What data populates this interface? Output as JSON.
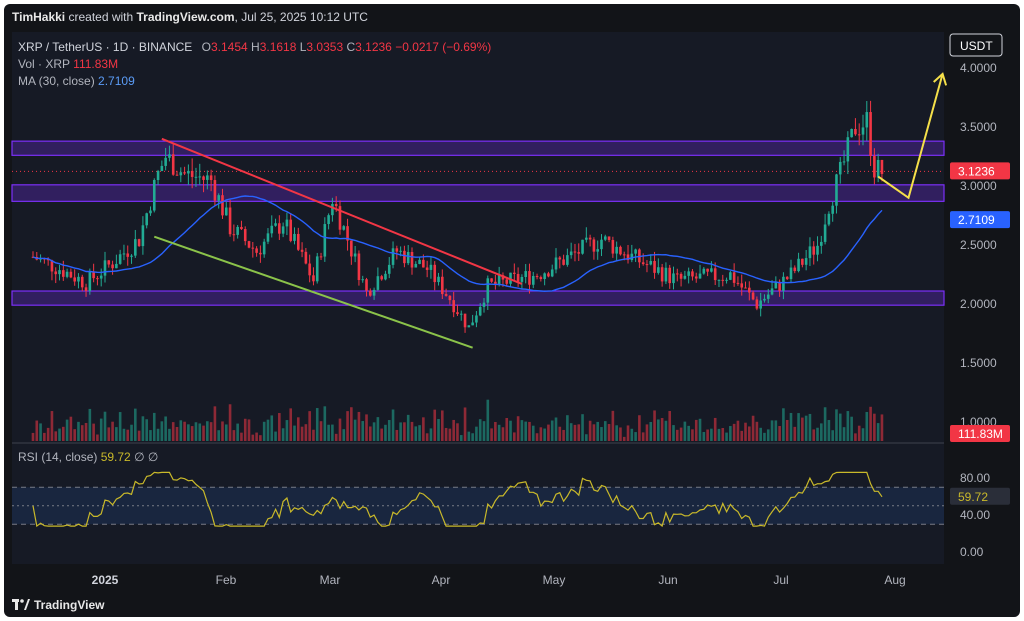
{
  "header": {
    "author": "TimHakki",
    "credit_mid": " created with ",
    "brand": "TradingView.com",
    "date_text": ", Jul 25, 2025 10:12 UTC"
  },
  "legend": {
    "symbol": "XRP / TetherUS · 1D · BINANCE",
    "o_label": "O",
    "o_value": "3.1454",
    "h_label": "H",
    "h_value": "3.1618",
    "l_label": "L",
    "l_value": "3.0353",
    "c_label": "C",
    "c_value": "3.1236",
    "change": "−0.0217 (−0.69%)",
    "vol_label": "Vol · XRP",
    "vol_value": "111.83M",
    "ma_label": "MA (30, close)",
    "ma_value": "2.7109",
    "rsi_label": "RSI (14, close)",
    "rsi_value": "59.72",
    "rsi_extra": "∅ ∅"
  },
  "footer": {
    "logo_text": "TradingView"
  },
  "colors": {
    "up": "#22ab94",
    "down": "#f23645",
    "ma": "#2962ff",
    "rsi": "#c9b92a",
    "zone": "#7b2ff7",
    "resistance_line": "#f23645",
    "support_line": "#8bc34a",
    "projection": "#f5e04a",
    "background": "#121418"
  },
  "chart_data": {
    "type": "candlestick",
    "title": "XRP / TetherUS · 1D · BINANCE",
    "currency": "USDT",
    "x_ticks": [
      "2025",
      "Feb",
      "Mar",
      "Apr",
      "May",
      "Jun",
      "Jul",
      "Aug"
    ],
    "y_ticks": [
      "4.0000",
      "3.5000",
      "3.0000",
      "2.5000",
      "2.0000",
      "1.5000",
      "1.0000"
    ],
    "ylim": [
      0.9,
      4.1
    ],
    "rsi_ticks": [
      "80.00",
      "40.00",
      "0.00"
    ],
    "rsi_levels": [
      70,
      50,
      30
    ],
    "current_price": 3.1236,
    "current_price_label": "3.1236",
    "ma_value": 2.7109,
    "ma_label": "2.7109",
    "volume_label": "111.83M",
    "rsi_current": 59.72,
    "rsi_current_label": "59.72",
    "zones": [
      {
        "low": 3.26,
        "high": 3.38
      },
      {
        "low": 2.87,
        "high": 3.01
      },
      {
        "low": 1.99,
        "high": 2.11
      }
    ],
    "close_series": [
      {
        "date": "2024-12-13",
        "close": 2.4
      },
      {
        "date": "2024-12-20",
        "close": 2.3
      },
      {
        "date": "2024-12-27",
        "close": 2.18
      },
      {
        "date": "2025-01-03",
        "close": 2.35
      },
      {
        "date": "2025-01-10",
        "close": 2.55
      },
      {
        "date": "2025-01-15",
        "close": 3.1
      },
      {
        "date": "2025-01-17",
        "close": 3.25
      },
      {
        "date": "2025-01-22",
        "close": 3.1
      },
      {
        "date": "2025-01-29",
        "close": 3.05
      },
      {
        "date": "2025-02-03",
        "close": 2.65
      },
      {
        "date": "2025-02-10",
        "close": 2.45
      },
      {
        "date": "2025-02-17",
        "close": 2.7
      },
      {
        "date": "2025-02-25",
        "close": 2.2
      },
      {
        "date": "2025-03-02",
        "close": 2.9
      },
      {
        "date": "2025-03-06",
        "close": 2.55
      },
      {
        "date": "2025-03-11",
        "close": 2.1
      },
      {
        "date": "2025-03-19",
        "close": 2.45
      },
      {
        "date": "2025-03-27",
        "close": 2.3
      },
      {
        "date": "2025-04-02",
        "close": 2.05
      },
      {
        "date": "2025-04-07",
        "close": 1.8
      },
      {
        "date": "2025-04-12",
        "close": 2.15
      },
      {
        "date": "2025-04-25",
        "close": 2.25
      },
      {
        "date": "2025-05-12",
        "close": 2.55
      },
      {
        "date": "2025-05-20",
        "close": 2.4
      },
      {
        "date": "2025-06-01",
        "close": 2.2
      },
      {
        "date": "2025-06-15",
        "close": 2.25
      },
      {
        "date": "2025-06-22",
        "close": 2.0
      },
      {
        "date": "2025-07-01",
        "close": 2.25
      },
      {
        "date": "2025-07-08",
        "close": 2.5
      },
      {
        "date": "2025-07-11",
        "close": 2.85
      },
      {
        "date": "2025-07-14",
        "close": 3.1
      },
      {
        "date": "2025-07-18",
        "close": 3.5
      },
      {
        "date": "2025-07-21",
        "close": 3.55
      },
      {
        "date": "2025-07-23",
        "close": 3.15
      },
      {
        "date": "2025-07-25",
        "close": 3.12
      }
    ],
    "trendlines": [
      {
        "role": "resistance",
        "from": {
          "date": "2025-01-16",
          "price": 3.4
        },
        "to": {
          "date": "2025-04-21",
          "price": 2.17
        }
      },
      {
        "role": "support",
        "from": {
          "date": "2025-01-14",
          "price": 2.57
        },
        "to": {
          "date": "2025-04-08",
          "price": 1.63
        }
      },
      {
        "role": "projection",
        "points": [
          {
            "date": "2025-07-24",
            "price": 3.08
          },
          {
            "date": "2025-08-01",
            "price": 2.9
          },
          {
            "date": "2025-08-10",
            "price": 3.95
          }
        ]
      }
    ]
  }
}
